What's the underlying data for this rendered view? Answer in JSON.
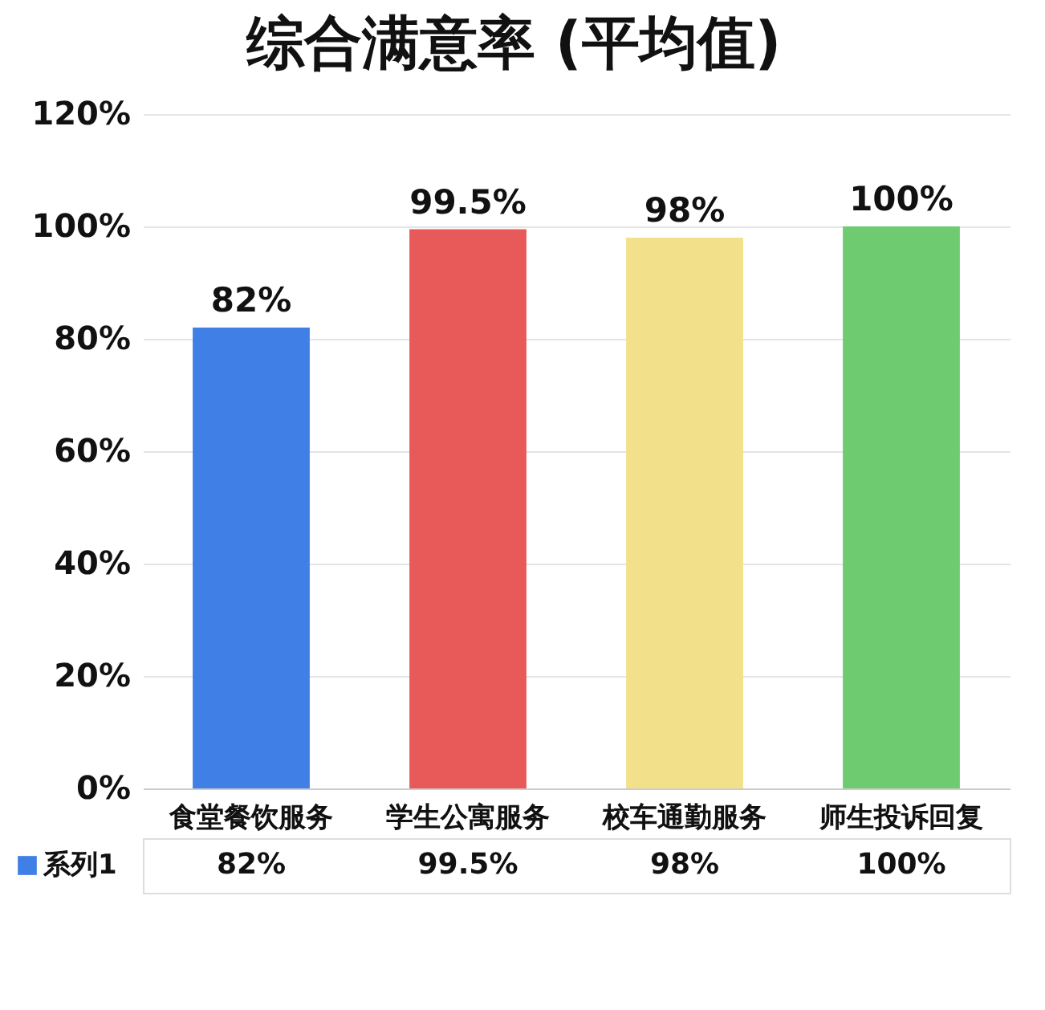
{
  "chart_data": {
    "type": "bar",
    "title": "综合满意率 (平均值)",
    "categories": [
      "食堂餐饮服务",
      "学生公寓服务",
      "校车通勤服务",
      "师生投诉回复"
    ],
    "series": [
      {
        "name": "系列1",
        "values": [
          82,
          99.5,
          98,
          100
        ],
        "colors": [
          "#3f7fe6",
          "#e85a5a",
          "#f3e08a",
          "#6fcb6f"
        ],
        "value_labels": [
          "82%",
          "99.5%",
          "98%",
          "100%"
        ]
      }
    ],
    "ylim": [
      0,
      120
    ],
    "yticks": [
      {
        "value": 0,
        "label": "0%"
      },
      {
        "value": 20,
        "label": "20%"
      },
      {
        "value": 40,
        "label": "40%"
      },
      {
        "value": 60,
        "label": "60%"
      },
      {
        "value": 80,
        "label": "80%"
      },
      {
        "value": 100,
        "label": "100%"
      },
      {
        "value": 120,
        "label": "120%"
      }
    ],
    "grid": "y",
    "legend": "bottom"
  }
}
